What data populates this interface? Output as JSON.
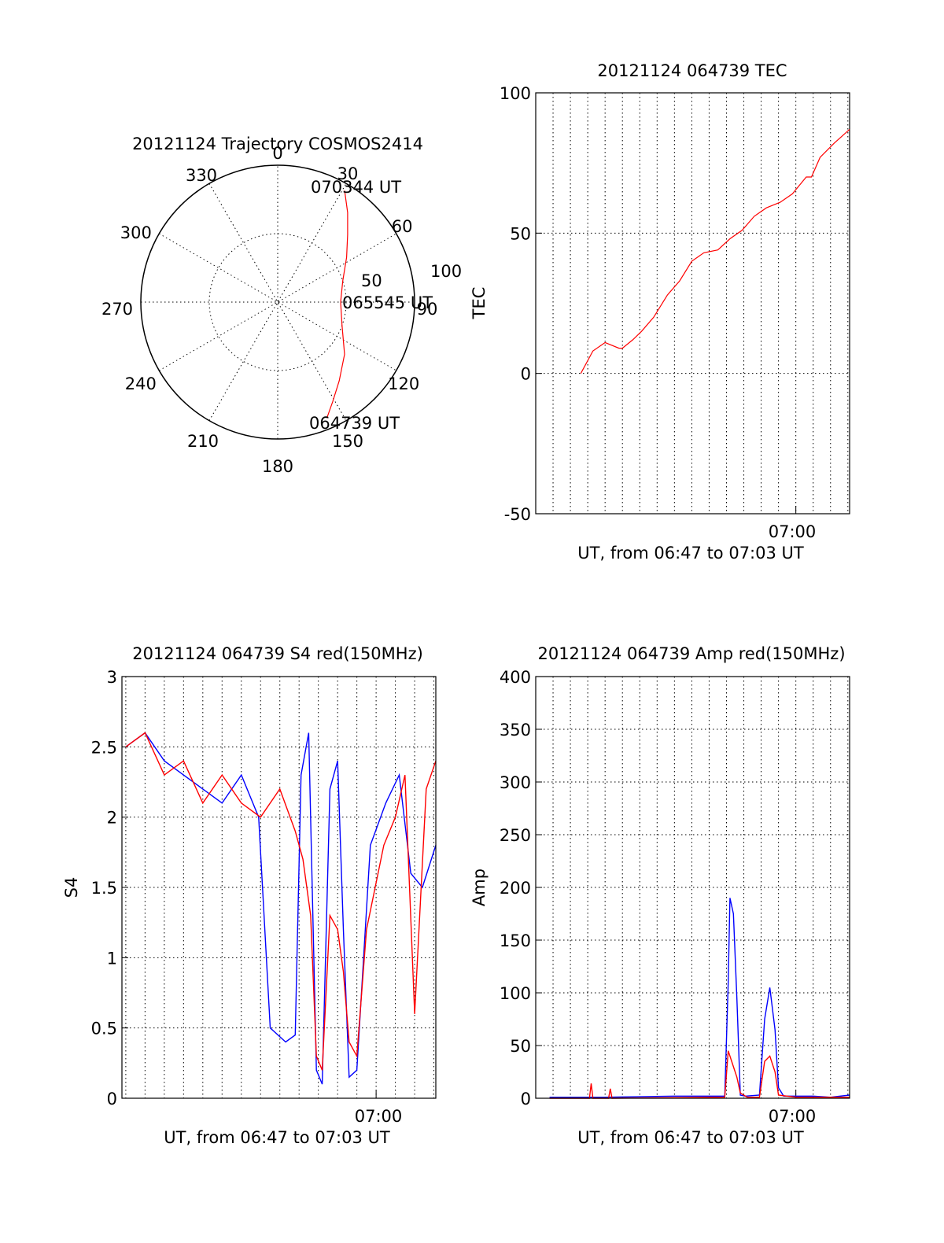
{
  "colors": {
    "red": "#ff0000",
    "blue": "#0000ff",
    "black": "#000000",
    "background": "#ffffff"
  },
  "chart_data": [
    {
      "id": "polar",
      "type": "scatter",
      "projection": "polar",
      "title": "20121124 Trajectory COSMOS2414",
      "azimuth_labels": [
        "0",
        "30",
        "60",
        "90",
        "120",
        "150",
        "180",
        "210",
        "240",
        "270",
        "300",
        "330"
      ],
      "radial_labels": [
        "50",
        "100"
      ],
      "zenith_angle_max": 100,
      "trajectory": {
        "color": "red",
        "azimuth_deg": [
          157,
          151,
          142,
          128,
          110,
          90,
          72,
          57,
          46,
          38,
          31
        ],
        "zenith_deg": [
          92,
          83,
          73,
          62,
          50,
          46,
          50,
          60,
          71,
          83,
          95
        ]
      },
      "annotations": [
        {
          "text": "070344 UT",
          "azimuth_deg": 27,
          "zenith_deg": 97
        },
        {
          "text": "065545 UT",
          "azimuth_deg": 90,
          "zenith_deg": 46
        },
        {
          "text": "064739 UT",
          "azimuth_deg": 160,
          "zenith_deg": 95
        }
      ]
    },
    {
      "id": "tec",
      "type": "line",
      "title": "20121124 064739 TEC",
      "xlabel": "UT, from 06:47 to 07:03 UT",
      "ylabel": "TEC",
      "ylim": [
        -50,
        100
      ],
      "yticks": [
        "-50",
        "0",
        "50",
        "100"
      ],
      "xlim_min": [
        405,
        423.1
      ],
      "xtick_label": "07:00",
      "xtick_min": 420,
      "grid": "on",
      "series": [
        {
          "color": "red",
          "x": [
            407.6,
            408.3,
            409.0,
            409.8,
            410.0,
            410.6,
            411.1,
            411.8,
            412.6,
            413.3,
            414.0,
            414.7,
            415.5,
            416.2,
            416.9,
            417.6,
            418.3,
            419.1,
            419.8,
            420.6,
            420.9,
            421.4,
            422.2,
            423.1
          ],
          "y": [
            0,
            8,
            11,
            9,
            9,
            12,
            15,
            20,
            28,
            33,
            40,
            43,
            44,
            48,
            51,
            56,
            59,
            61,
            64,
            70,
            70,
            77,
            82,
            87
          ]
        }
      ]
    },
    {
      "id": "s4",
      "type": "line",
      "title": "20121124 064739 S4 red(150MHz)",
      "xlabel": "UT, from 06:47 to 07:03 UT",
      "ylabel": "S4",
      "ylim": [
        0,
        3
      ],
      "yticks": [
        "0",
        "0.5",
        "1",
        "1.5",
        "2",
        "2.5",
        "3"
      ],
      "xlim_min": [
        406.8,
        423.1
      ],
      "xtick_label": "07:00",
      "xtick_min": 420,
      "grid": "on",
      "series": [
        {
          "color": "blue",
          "x": [
            407.0,
            408.0,
            409.0,
            410.0,
            411.0,
            412.0,
            413.0,
            413.9,
            414.5,
            415.3,
            415.8,
            416.1,
            416.5,
            416.9,
            417.2,
            417.6,
            418.0,
            418.3,
            418.6,
            419.0,
            419.7,
            420.5,
            421.2,
            421.8,
            422.4,
            423.1
          ],
          "y": [
            2.5,
            2.6,
            2.4,
            2.3,
            2.2,
            2.1,
            2.3,
            2.0,
            0.5,
            0.4,
            0.45,
            2.3,
            2.6,
            0.2,
            0.1,
            2.2,
            2.4,
            1.2,
            0.15,
            0.2,
            1.8,
            2.1,
            2.3,
            1.6,
            1.5,
            1.8
          ]
        },
        {
          "color": "red",
          "x": [
            407.0,
            408.0,
            409.0,
            410.0,
            411.0,
            412.0,
            413.0,
            414.0,
            415.0,
            415.8,
            416.2,
            416.6,
            416.9,
            417.2,
            417.6,
            418.0,
            418.3,
            418.6,
            419.0,
            419.5,
            420.4,
            421.0,
            421.5,
            422.0,
            422.6,
            423.1
          ],
          "y": [
            2.5,
            2.6,
            2.3,
            2.4,
            2.1,
            2.3,
            2.1,
            2.0,
            2.2,
            1.9,
            1.7,
            1.3,
            0.3,
            0.2,
            1.3,
            1.2,
            0.9,
            0.4,
            0.3,
            1.2,
            1.8,
            2.0,
            2.3,
            0.6,
            2.2,
            2.4
          ]
        }
      ]
    },
    {
      "id": "amp",
      "type": "line",
      "title": "20121124 064739 Amp red(150MHz)",
      "xlabel": "UT, from 06:47 to 07:03 UT",
      "ylabel": "Amp",
      "ylim": [
        0,
        400
      ],
      "yticks": [
        "0",
        "50",
        "100",
        "150",
        "200",
        "250",
        "300",
        "350",
        "400"
      ],
      "xlim_min": [
        405,
        423.1
      ],
      "xtick_label": "07:00",
      "xtick_min": 420,
      "grid": "on",
      "series": [
        {
          "color": "blue",
          "x": [
            405.8,
            409.0,
            413.0,
            415.9,
            416.1,
            416.2,
            416.4,
            416.6,
            416.8,
            417.1,
            417.9,
            418.2,
            418.5,
            418.8,
            419.0,
            419.3,
            420.0,
            421.0,
            422.0,
            423.1
          ],
          "y": [
            1,
            1,
            2,
            2,
            110,
            190,
            175,
            95,
            3,
            2,
            3,
            75,
            105,
            65,
            10,
            2,
            2,
            2,
            1,
            3
          ]
        },
        {
          "color": "red",
          "x": [
            405.8,
            408.1,
            408.2,
            408.3,
            409.2,
            409.3,
            409.4,
            415.9,
            416.1,
            416.3,
            416.6,
            416.8,
            417.2,
            417.9,
            418.2,
            418.5,
            418.8,
            419.0,
            420.0,
            423.1
          ],
          "y": [
            0,
            0,
            14,
            0,
            0,
            9,
            0,
            1,
            45,
            35,
            20,
            5,
            1,
            1,
            35,
            40,
            25,
            3,
            1,
            1
          ]
        }
      ]
    }
  ]
}
